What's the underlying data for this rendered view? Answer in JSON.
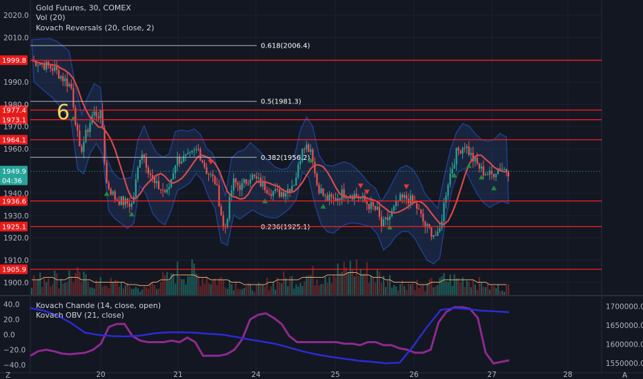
{
  "legend": {
    "title": "Gold Futures, 30, COMEX",
    "vol": "Vol (20)",
    "reversals": "Kovach Reversals (20, close, 2)",
    "chande": "Kovach Chande (14, close, open)",
    "obv": "Kovach OBV (21, close)"
  },
  "annotation": "6",
  "colors": {
    "background": "#131722",
    "up": "#26a69a",
    "down": "#ef5350",
    "level": "#ff1f1f",
    "ma": "#d94a4a",
    "band": "#1f3f8c",
    "chande": "#2b2bd6",
    "obv": "#8e2a8e"
  },
  "chart_data": {
    "type": "candlestick",
    "price_axis": {
      "ylim": [
        1895,
        2025
      ],
      "ticks": [
        "2020.0",
        "2010.0",
        "1990.0",
        "1980.0",
        "1970.0",
        "1960.0",
        "1940.0",
        "1930.0",
        "1920.0",
        "1910.0",
        "1900.0"
      ],
      "current_price": "1949.9",
      "countdown": "04:36"
    },
    "x_axis": {
      "ticks": [
        "20",
        "21",
        "24",
        "25",
        "26",
        "27",
        "28"
      ]
    },
    "levels": [
      {
        "value": 1999.8,
        "label": "1999.8"
      },
      {
        "value": 1977.4,
        "label": "1977.4"
      },
      {
        "value": 1973.1,
        "label": "1973.1"
      },
      {
        "value": 1964.1,
        "label": "1964.1"
      },
      {
        "value": 1936.6,
        "label": "1936.6"
      },
      {
        "value": 1925.1,
        "label": "1925.1"
      },
      {
        "value": 1905.9,
        "label": "1905.9"
      }
    ],
    "fib_levels": [
      {
        "label": "0.618(2006.4)",
        "value": 2006.4
      },
      {
        "label": "0.5(1981.3)",
        "value": 1981.3
      },
      {
        "label": "0.382(1956.2)",
        "value": 1956.2
      },
      {
        "label": "0.236(1925.1)",
        "value": 1925.1
      }
    ],
    "close_path": [
      [
        0,
        2000
      ],
      [
        10,
        1996
      ],
      [
        18,
        1988
      ],
      [
        22,
        1958
      ],
      [
        28,
        1976
      ],
      [
        32,
        1975
      ],
      [
        34,
        1945
      ],
      [
        38,
        1938
      ],
      [
        42,
        1936
      ],
      [
        46,
        1935
      ],
      [
        50,
        1960
      ],
      [
        56,
        1944
      ],
      [
        62,
        1940
      ],
      [
        66,
        1955
      ],
      [
        72,
        1956
      ],
      [
        76,
        1960
      ],
      [
        80,
        1950
      ],
      [
        84,
        1945
      ],
      [
        86,
        1935
      ],
      [
        88,
        1922
      ],
      [
        92,
        1945
      ],
      [
        96,
        1943
      ],
      [
        100,
        1948
      ],
      [
        104,
        1945
      ],
      [
        108,
        1942
      ],
      [
        112,
        1940
      ],
      [
        116,
        1941
      ],
      [
        120,
        1945
      ],
      [
        122,
        1952
      ],
      [
        124,
        1963
      ],
      [
        126,
        1961
      ],
      [
        128,
        1960
      ],
      [
        130,
        1945
      ],
      [
        134,
        1938
      ],
      [
        138,
        1937
      ],
      [
        142,
        1940
      ],
      [
        146,
        1940
      ],
      [
        150,
        1938
      ],
      [
        154,
        1935
      ],
      [
        158,
        1932
      ],
      [
        160,
        1925
      ],
      [
        164,
        1930
      ],
      [
        168,
        1937
      ],
      [
        172,
        1938
      ],
      [
        176,
        1934
      ],
      [
        180,
        1925
      ],
      [
        186,
        1920
      ],
      [
        190,
        1944
      ],
      [
        194,
        1958
      ],
      [
        198,
        1962
      ],
      [
        202,
        1955
      ],
      [
        206,
        1950
      ],
      [
        210,
        1948
      ],
      [
        214,
        1952
      ],
      [
        218,
        1950
      ]
    ],
    "volume": [
      2,
      2.5,
      2,
      2.5,
      2,
      1.5,
      1.5,
      1.5,
      1,
      0.8,
      1.5,
      2,
      3,
      3,
      2.5,
      2,
      2,
      1.5,
      1,
      1,
      1.5,
      2,
      2,
      2.5,
      2.5,
      3,
      3,
      3.5,
      3,
      2.5,
      2,
      1.5,
      1.5,
      1,
      1.5,
      2,
      2,
      2,
      1.5,
      1,
      1
    ],
    "chande": [
      -28,
      -22,
      -20,
      -22,
      -25,
      -26,
      -25,
      -24,
      -20,
      -12,
      10,
      14,
      14,
      -2,
      -8,
      -10,
      -10,
      -10,
      -8,
      -10,
      -4,
      -10,
      -28,
      -28,
      -28,
      -26,
      -20,
      -6,
      20,
      26,
      28,
      22,
      14,
      -2,
      -10,
      -10,
      -10,
      -10,
      -10,
      -10,
      -12,
      -12,
      -14,
      -10,
      -10,
      -14,
      -14,
      -18,
      -20,
      -24,
      -24,
      -20,
      16,
      30,
      36,
      36,
      34,
      22,
      -24,
      -38,
      -36,
      -34
    ],
    "obv": [
      1695000,
      1688000,
      1675000,
      1655000,
      1630000,
      1624000,
      1621000,
      1620000,
      1622000,
      1628000,
      1631000,
      1631000,
      1630000,
      1627000,
      1625000,
      1619000,
      1612000,
      1606000,
      1600000,
      1590000,
      1580000,
      1572000,
      1566000,
      1561000,
      1556000,
      1553000,
      1549000,
      1551000,
      1595000,
      1645000,
      1690000,
      1695000,
      1692000,
      1688000,
      1686000,
      1684000
    ],
    "sub_axis": {
      "left_ticks": [
        "40.0",
        "20.0",
        "0.0",
        "−20.0",
        "−40.0"
      ],
      "right_ticks": [
        "1700000.0",
        "1650000.0",
        "1600000.0",
        "1550000.0"
      ]
    },
    "reversal_markers": [
      {
        "i": 20,
        "type": "up"
      },
      {
        "i": 36,
        "type": "up"
      },
      {
        "i": 48,
        "type": "up"
      },
      {
        "i": 86,
        "type": "down"
      },
      {
        "i": 112,
        "type": "up"
      },
      {
        "i": 134,
        "type": "up"
      },
      {
        "i": 140,
        "type": "up"
      },
      {
        "i": 158,
        "type": "down"
      },
      {
        "i": 161,
        "type": "down"
      },
      {
        "i": 172,
        "type": "up"
      },
      {
        "i": 180,
        "type": "down"
      },
      {
        "i": 203,
        "type": "up"
      },
      {
        "i": 210,
        "type": "up"
      },
      {
        "i": 216,
        "type": "up"
      },
      {
        "i": 222,
        "type": "up"
      }
    ]
  }
}
